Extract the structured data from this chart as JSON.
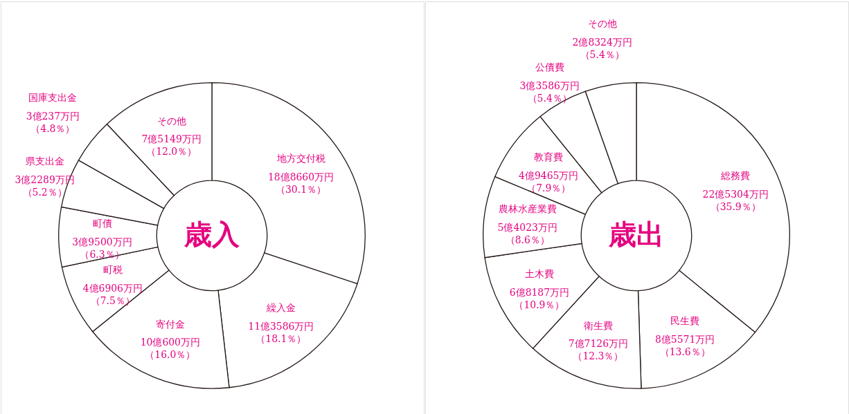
{
  "chart_data": [
    {
      "type": "donut",
      "title": "歳入",
      "categories": [
        "地方交付税",
        "繰入金",
        "寄付金",
        "町税",
        "町債",
        "県支出金",
        "国庫支出金",
        "その他"
      ],
      "values": [
        30.1,
        18.1,
        16.0,
        7.5,
        6.3,
        5.2,
        4.8,
        12.0
      ],
      "colors": [
        "#ffffff",
        "#ffffff",
        "#ffffff",
        "#ffffff",
        "#ffffff",
        "#ffffff",
        "#ffffff",
        "#ffffff"
      ],
      "value_labels": [
        "18億8660万円（30.1％）",
        "11億3586万円（18.1％）",
        "10億600万円（16.0％）",
        "4億6906万円（7.5％）",
        "3億9500万円（6.3％）",
        "3億2289万円（5.2％）",
        "3億237万円（4.8％）",
        "7億5149万円（12.0％）"
      ]
    },
    {
      "type": "donut",
      "title": "歳出",
      "categories": [
        "総務費",
        "民生費",
        "衛生費",
        "土木費",
        "農林水産業費",
        "教育費",
        "公債費",
        "その他"
      ],
      "values": [
        35.9,
        13.6,
        12.3,
        10.9,
        8.6,
        7.9,
        5.4,
        5.4
      ],
      "colors": [
        "#ffffff",
        "#ffffff",
        "#ffffff",
        "#ffffff",
        "#ffffff",
        "#ffffff",
        "#ffffff",
        "#ffffff"
      ],
      "value_labels": [
        "22億5304万円（35.9％）",
        "8億5571万円（13.6％）",
        "7億7126万円（12.3％）",
        "6億8187万円（10.9％）",
        "5億4023万円（8.6％）",
        "4億9465万円（7.9％）",
        "3億3586万円（5.4％）",
        "2億8324万円（5.4％）"
      ]
    }
  ]
}
